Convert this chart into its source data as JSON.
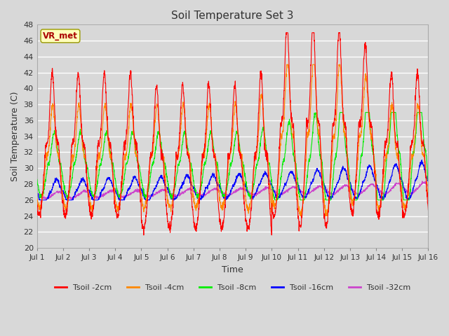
{
  "title": "Soil Temperature Set 3",
  "xlabel": "Time",
  "ylabel": "Soil Temperature (C)",
  "ylim": [
    20,
    48
  ],
  "yticks": [
    20,
    22,
    24,
    26,
    28,
    30,
    32,
    34,
    36,
    38,
    40,
    42,
    44,
    46,
    48
  ],
  "xlim_days": 15,
  "x_tick_labels": [
    "Jul 1",
    "Jul 2",
    "Jul 3",
    "Jul 4",
    "Jul 5",
    "Jul 6",
    "Jul 7",
    "Jul 8",
    "Jul 9",
    "Jul 10",
    "Jul 11",
    "Jul 12",
    "Jul 13",
    "Jul 14",
    "Jul 15",
    "Jul 16"
  ],
  "annotation_text": "VR_met",
  "annotation_color": "#aa0000",
  "annotation_bg": "#ffffbb",
  "annotation_border": "#999900",
  "series_colors": [
    "#ff0000",
    "#ff8800",
    "#00ee00",
    "#0000ff",
    "#cc44cc"
  ],
  "series_labels": [
    "Tsoil -2cm",
    "Tsoil -4cm",
    "Tsoil -8cm",
    "Tsoil -16cm",
    "Tsoil -32cm"
  ],
  "bg_color": "#d8d8d8",
  "plot_bg": "#d8d8d8",
  "grid_color": "#ffffff",
  "title_color": "#333333",
  "axis_label_color": "#333333",
  "tick_label_color": "#333333",
  "figsize": [
    6.4,
    4.8
  ],
  "dpi": 100
}
